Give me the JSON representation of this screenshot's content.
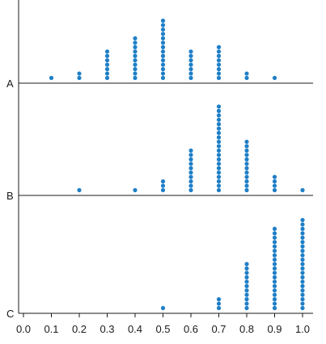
{
  "chart_data": {
    "type": "scatter",
    "subtype": "dot-plot",
    "title": "",
    "xlabel": "",
    "ylabel": "",
    "xlim": [
      0.0,
      1.0
    ],
    "x_ticks": [
      "0.0",
      "0.1",
      "0.2",
      "0.3",
      "0.4",
      "0.5",
      "0.6",
      "0.7",
      "0.8",
      "0.9",
      "1.0"
    ],
    "dot_color": "#1f7fc6",
    "grid": false,
    "panels": [
      {
        "label": "A",
        "x": [
          0.1,
          0.2,
          0.3,
          0.4,
          0.5,
          0.6,
          0.7,
          0.8,
          0.9
        ],
        "counts": [
          1,
          2,
          7,
          10,
          14,
          7,
          8,
          2,
          1
        ]
      },
      {
        "label": "B",
        "x": [
          0.2,
          0.4,
          0.5,
          0.6,
          0.7,
          0.8,
          0.9,
          1.0
        ],
        "counts": [
          1,
          1,
          3,
          10,
          20,
          12,
          4,
          1
        ]
      },
      {
        "label": "C",
        "x": [
          0.5,
          0.7,
          0.8,
          0.9,
          1.0
        ],
        "counts": [
          1,
          3,
          11,
          19,
          21
        ]
      }
    ]
  }
}
